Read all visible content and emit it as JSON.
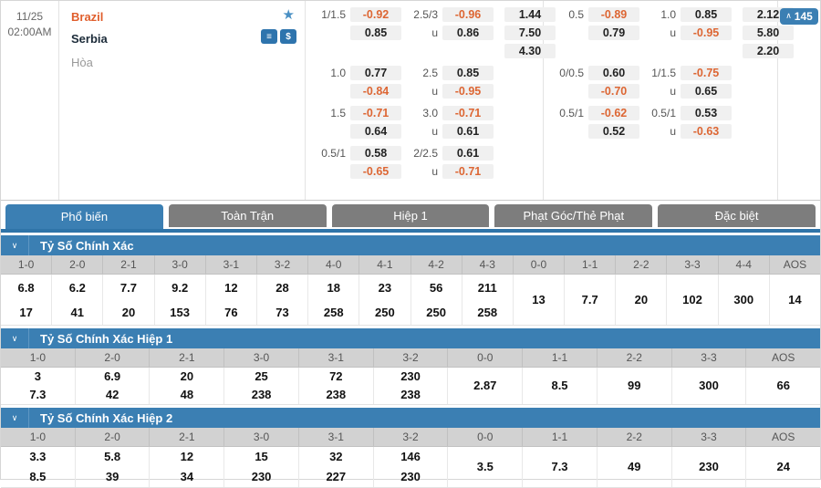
{
  "colors": {
    "accent_blue": "#3b7fb3",
    "tab_inactive_gray": "#7d7d7d",
    "negative_odds": "#dd6633",
    "home_team_orange": "#e05e2c",
    "chip_background": "#f0f0f0",
    "star_blue": "#4a90c4"
  },
  "match": {
    "date": "11/25",
    "time": "02:00AM",
    "home_team": "Brazil",
    "away_team": "Serbia",
    "draw_label": "Hòa",
    "favorite_icon": "star-icon",
    "betslip_icon": "list-icon",
    "cash_icon": "dollar-icon",
    "more_markets_count": "145",
    "more_markets_chevron": "∧"
  },
  "odds_groups": [
    {
      "blocks": [
        {
          "rows": [
            {
              "h": "1/1.5",
              "hv": "-0.92",
              "o": "2.5/3",
              "ov": "-0.96",
              "x": "1.44"
            },
            {
              "h": "",
              "hv": "0.85",
              "o": "u",
              "ov": "0.86",
              "x": "7.50"
            },
            {
              "h": "",
              "hv": null,
              "o": "",
              "ov": null,
              "x": "4.30"
            }
          ]
        },
        {
          "rows": [
            {
              "h": "1.0",
              "hv": "0.77",
              "o": "2.5",
              "ov": "0.85",
              "x": null
            },
            {
              "h": "",
              "hv": "-0.84",
              "o": "u",
              "ov": "-0.95",
              "x": null
            }
          ]
        },
        {
          "rows": [
            {
              "h": "1.5",
              "hv": "-0.71",
              "o": "3.0",
              "ov": "-0.71",
              "x": null
            },
            {
              "h": "",
              "hv": "0.64",
              "o": "u",
              "ov": "0.61",
              "x": null
            }
          ]
        },
        {
          "rows": [
            {
              "h": "0.5/1",
              "hv": "0.58",
              "o": "2/2.5",
              "ov": "0.61",
              "x": null
            },
            {
              "h": "",
              "hv": "-0.65",
              "o": "u",
              "ov": "-0.71",
              "x": null
            }
          ]
        }
      ]
    },
    {
      "blocks": [
        {
          "rows": [
            {
              "h": "0.5",
              "hv": "-0.89",
              "o": "1.0",
              "ov": "0.85",
              "x": "2.12"
            },
            {
              "h": "",
              "hv": "0.79",
              "o": "u",
              "ov": "-0.95",
              "x": "5.80"
            },
            {
              "h": "",
              "hv": null,
              "o": "",
              "ov": null,
              "x": "2.20"
            }
          ]
        },
        {
          "rows": [
            {
              "h": "0/0.5",
              "hv": "0.60",
              "o": "1/1.5",
              "ov": "-0.75",
              "x": null
            },
            {
              "h": "",
              "hv": "-0.70",
              "o": "u",
              "ov": "0.65",
              "x": null
            }
          ]
        },
        {
          "rows": [
            {
              "h": "0.5/1",
              "hv": "-0.62",
              "o": "0.5/1",
              "ov": "0.53",
              "x": null
            },
            {
              "h": "",
              "hv": "0.52",
              "o": "u",
              "ov": "-0.63",
              "x": null
            }
          ]
        }
      ]
    }
  ],
  "tabs": [
    {
      "label": "Phổ biến",
      "active": true
    },
    {
      "label": "Toàn Trận",
      "active": false
    },
    {
      "label": "Hiệp 1",
      "active": false
    },
    {
      "label": "Phạt Góc/Thẻ Phạt",
      "active": false
    },
    {
      "label": "Đặc biệt",
      "active": false
    }
  ],
  "sections": [
    {
      "title": "Tỷ Số Chính Xác",
      "collapse_icon": "∨",
      "columns": [
        {
          "score": "1-0",
          "values": [
            "6.8",
            "17"
          ]
        },
        {
          "score": "2-0",
          "values": [
            "6.2",
            "41"
          ]
        },
        {
          "score": "2-1",
          "values": [
            "7.7",
            "20"
          ]
        },
        {
          "score": "3-0",
          "values": [
            "9.2",
            "153"
          ]
        },
        {
          "score": "3-1",
          "values": [
            "12",
            "76"
          ]
        },
        {
          "score": "3-2",
          "values": [
            "28",
            "73"
          ]
        },
        {
          "score": "4-0",
          "values": [
            "18",
            "258"
          ]
        },
        {
          "score": "4-1",
          "values": [
            "23",
            "250"
          ]
        },
        {
          "score": "4-2",
          "values": [
            "56",
            "250"
          ]
        },
        {
          "score": "4-3",
          "values": [
            "211",
            "258"
          ]
        },
        {
          "score": "0-0",
          "values": [
            "13"
          ]
        },
        {
          "score": "1-1",
          "values": [
            "7.7"
          ]
        },
        {
          "score": "2-2",
          "values": [
            "20"
          ]
        },
        {
          "score": "3-3",
          "values": [
            "102"
          ]
        },
        {
          "score": "4-4",
          "values": [
            "300"
          ]
        },
        {
          "score": "AOS",
          "values": [
            "14"
          ]
        }
      ]
    },
    {
      "title": "Tỷ Số Chính Xác Hiệp 1",
      "collapse_icon": "∨",
      "columns": [
        {
          "score": "1-0",
          "values": [
            "3",
            "7.3"
          ]
        },
        {
          "score": "2-0",
          "values": [
            "6.9",
            "42"
          ]
        },
        {
          "score": "2-1",
          "values": [
            "20",
            "48"
          ]
        },
        {
          "score": "3-0",
          "values": [
            "25",
            "238"
          ]
        },
        {
          "score": "3-1",
          "values": [
            "72",
            "238"
          ]
        },
        {
          "score": "3-2",
          "values": [
            "230",
            "238"
          ]
        },
        {
          "score": "0-0",
          "values": [
            "2.87"
          ]
        },
        {
          "score": "1-1",
          "values": [
            "8.5"
          ]
        },
        {
          "score": "2-2",
          "values": [
            "99"
          ]
        },
        {
          "score": "3-3",
          "values": [
            "300"
          ]
        },
        {
          "score": "AOS",
          "values": [
            "66"
          ]
        }
      ]
    },
    {
      "title": "Tỷ Số Chính Xác Hiệp 2",
      "collapse_icon": "∨",
      "columns": [
        {
          "score": "1-0",
          "values": [
            "3.3",
            "8.5"
          ]
        },
        {
          "score": "2-0",
          "values": [
            "5.8",
            "39"
          ]
        },
        {
          "score": "2-1",
          "values": [
            "12",
            "34"
          ]
        },
        {
          "score": "3-0",
          "values": [
            "15",
            "230"
          ]
        },
        {
          "score": "3-1",
          "values": [
            "32",
            "227"
          ]
        },
        {
          "score": "3-2",
          "values": [
            "146",
            "230"
          ]
        },
        {
          "score": "0-0",
          "values": [
            "3.5"
          ]
        },
        {
          "score": "1-1",
          "values": [
            "7.3"
          ]
        },
        {
          "score": "2-2",
          "values": [
            "49"
          ]
        },
        {
          "score": "3-3",
          "values": [
            "230"
          ]
        },
        {
          "score": "AOS",
          "values": [
            "24"
          ]
        }
      ]
    }
  ]
}
